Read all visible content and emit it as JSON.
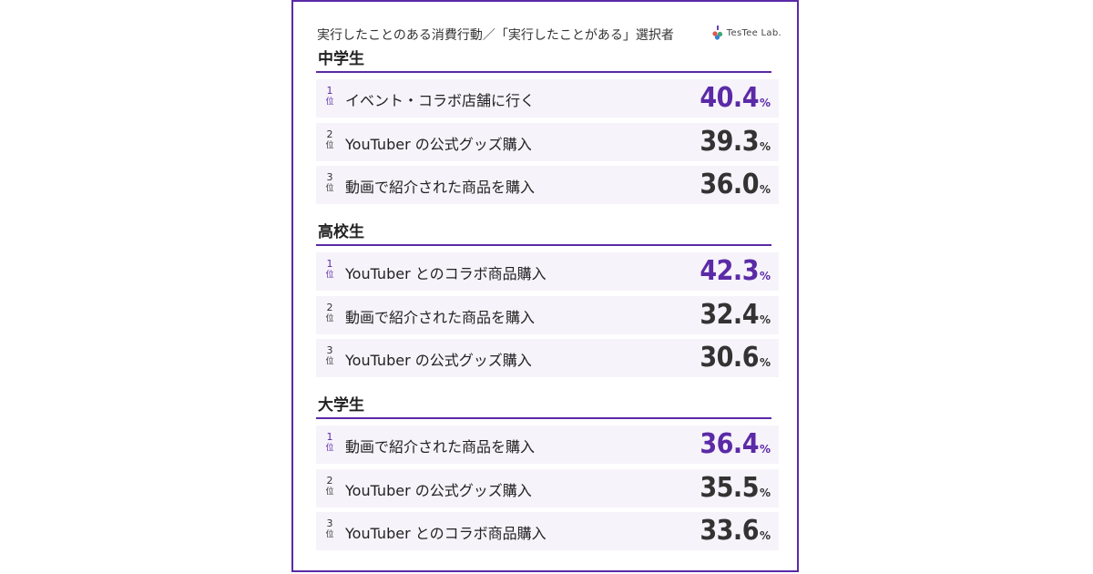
{
  "header": {
    "title": "実行したことのある消費行動／「実行したことがある」選択者",
    "logo_text": "TesTee Lab."
  },
  "rank_unit": "位",
  "percent_sign": "%",
  "colors": {
    "accent": "#5b2aa6",
    "row_bg": "#f6f3fa",
    "text": "#333333"
  },
  "chart_data": {
    "type": "table",
    "title": "実行したことのある消費行動／「実行したことがある」選択者",
    "unit": "%",
    "groups": [
      {
        "name": "中学生",
        "items": [
          {
            "rank": "1",
            "label": "イベント・コラボ店舗に行く",
            "value": "40.4"
          },
          {
            "rank": "2",
            "label": "YouTuber の公式グッズ購入",
            "value": "39.3"
          },
          {
            "rank": "3",
            "label": "動画で紹介された商品を購入",
            "value": "36.0"
          }
        ]
      },
      {
        "name": "高校生",
        "items": [
          {
            "rank": "1",
            "label": "YouTuber とのコラボ商品購入",
            "value": "42.3"
          },
          {
            "rank": "2",
            "label": "動画で紹介された商品を購入",
            "value": "32.4"
          },
          {
            "rank": "3",
            "label": "YouTuber の公式グッズ購入",
            "value": "30.6"
          }
        ]
      },
      {
        "name": "大学生",
        "items": [
          {
            "rank": "1",
            "label": "動画で紹介された商品を購入",
            "value": "36.4"
          },
          {
            "rank": "2",
            "label": "YouTuber の公式グッズ購入",
            "value": "35.5"
          },
          {
            "rank": "3",
            "label": "YouTuber とのコラボ商品購入",
            "value": "33.6"
          }
        ]
      }
    ]
  }
}
